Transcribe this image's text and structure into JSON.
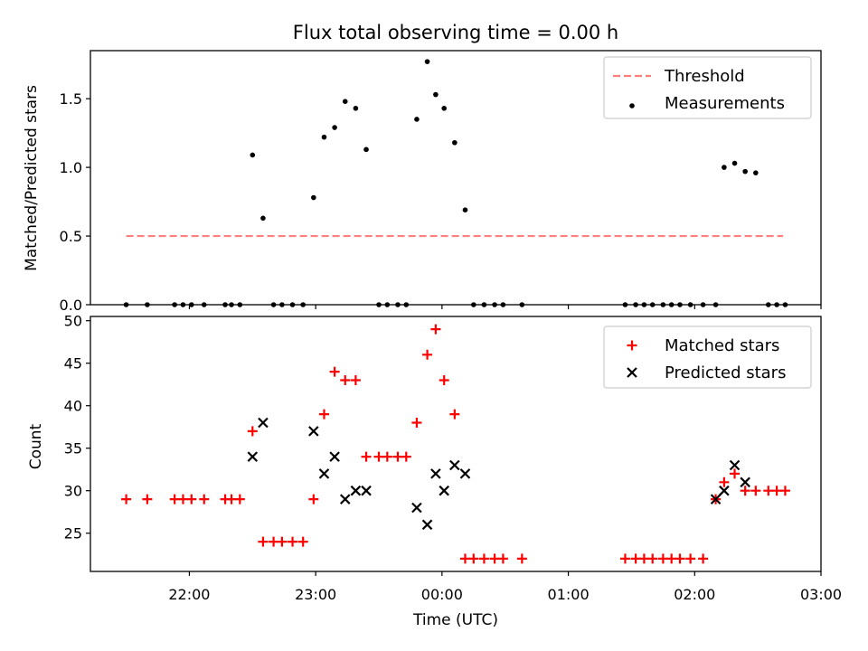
{
  "chart_data": [
    {
      "type": "scatter",
      "title": "Flux total observing time = 0.00 h",
      "xlabel": "",
      "ylabel": "Matched/Predicted stars",
      "ylim": [
        0,
        1.85
      ],
      "yticks": [
        "0.0",
        "0.5",
        "1.0",
        "1.5"
      ],
      "xlim": [
        "21:13",
        "03:00"
      ],
      "legend_position": "top-right",
      "series": [
        {
          "name": "Threshold",
          "kind": "dashed-line",
          "color": "#ff7f7f",
          "x": [
            "21:30",
            "02:42"
          ],
          "y": [
            0.5,
            0.5
          ]
        },
        {
          "name": "Measurements",
          "kind": "dots",
          "color": "#000000",
          "x": [
            "21:30",
            "21:40",
            "21:53",
            "21:57",
            "22:01",
            "22:07",
            "22:17",
            "22:20",
            "22:24",
            "22:30",
            "22:35",
            "22:40",
            "22:44",
            "22:49",
            "22:54",
            "22:59",
            "23:04",
            "23:09",
            "23:14",
            "23:19",
            "23:24",
            "23:30",
            "23:34",
            "23:39",
            "23:43",
            "23:48",
            "23:53",
            "23:57",
            "00:01",
            "00:06",
            "00:11",
            "00:15",
            "00:20",
            "00:25",
            "00:29",
            "00:38",
            "01:27",
            "01:32",
            "01:36",
            "01:40",
            "01:45",
            "01:49",
            "01:53",
            "01:58",
            "02:04",
            "02:10",
            "02:14",
            "02:19",
            "02:24",
            "02:29",
            "02:35",
            "02:39",
            "02:43"
          ],
          "y": [
            0,
            0,
            0,
            0,
            0,
            0,
            0,
            0,
            0,
            1.09,
            0.63,
            0,
            0,
            0,
            0,
            0.78,
            1.22,
            1.29,
            1.48,
            1.43,
            1.13,
            0,
            0,
            0,
            0,
            1.35,
            1.77,
            1.53,
            1.43,
            1.18,
            0.69,
            0,
            0,
            0,
            0,
            0,
            0,
            0,
            0,
            0,
            0,
            0,
            0,
            0,
            0,
            0,
            1.0,
            1.03,
            0.97,
            0.96,
            0,
            0,
            0
          ]
        }
      ]
    },
    {
      "type": "scatter",
      "title": "",
      "xlabel": "Time (UTC)",
      "ylabel": "Count",
      "ylim": [
        20.5,
        50.5
      ],
      "yticks": [
        "25",
        "30",
        "35",
        "40",
        "45",
        "50"
      ],
      "xlim": [
        "21:13",
        "03:00"
      ],
      "xticks": [
        "22:00",
        "23:00",
        "00:00",
        "01:00",
        "02:00",
        "03:00"
      ],
      "legend_position": "top-right",
      "series": [
        {
          "name": "Matched stars",
          "marker": "plus",
          "color": "#ff0000",
          "x": [
            "21:30",
            "21:40",
            "21:53",
            "21:57",
            "22:01",
            "22:07",
            "22:17",
            "22:20",
            "22:24",
            "22:30",
            "22:35",
            "22:40",
            "22:44",
            "22:49",
            "22:54",
            "22:59",
            "23:04",
            "23:09",
            "23:14",
            "23:19",
            "23:24",
            "23:30",
            "23:34",
            "23:39",
            "23:43",
            "23:48",
            "23:53",
            "23:57",
            "00:01",
            "00:06",
            "00:11",
            "00:15",
            "00:20",
            "00:25",
            "00:29",
            "00:38",
            "01:27",
            "01:32",
            "01:36",
            "01:40",
            "01:45",
            "01:49",
            "01:53",
            "01:58",
            "02:04",
            "02:10",
            "02:14",
            "02:19",
            "02:24",
            "02:29",
            "02:35",
            "02:39",
            "02:43"
          ],
          "y": [
            29,
            29,
            29,
            29,
            29,
            29,
            29,
            29,
            29,
            37,
            24,
            24,
            24,
            24,
            24,
            29,
            39,
            44,
            43,
            43,
            34,
            34,
            34,
            34,
            34,
            38,
            46,
            49,
            43,
            39,
            22,
            22,
            22,
            22,
            22,
            22,
            22,
            22,
            22,
            22,
            22,
            22,
            22,
            22,
            22,
            29,
            31,
            32,
            30,
            30,
            30,
            30,
            30
          ]
        },
        {
          "name": "Predicted stars",
          "marker": "x",
          "color": "#000000",
          "x": [
            "22:30",
            "22:35",
            "22:59",
            "23:04",
            "23:09",
            "23:14",
            "23:19",
            "23:24",
            "23:48",
            "23:53",
            "23:57",
            "00:01",
            "00:06",
            "00:11",
            "02:10",
            "02:14",
            "02:19",
            "02:24"
          ],
          "y": [
            34,
            38,
            37,
            32,
            34,
            29,
            30,
            30,
            28,
            26,
            32,
            30,
            33,
            32,
            29,
            30,
            33,
            31
          ]
        }
      ]
    }
  ]
}
